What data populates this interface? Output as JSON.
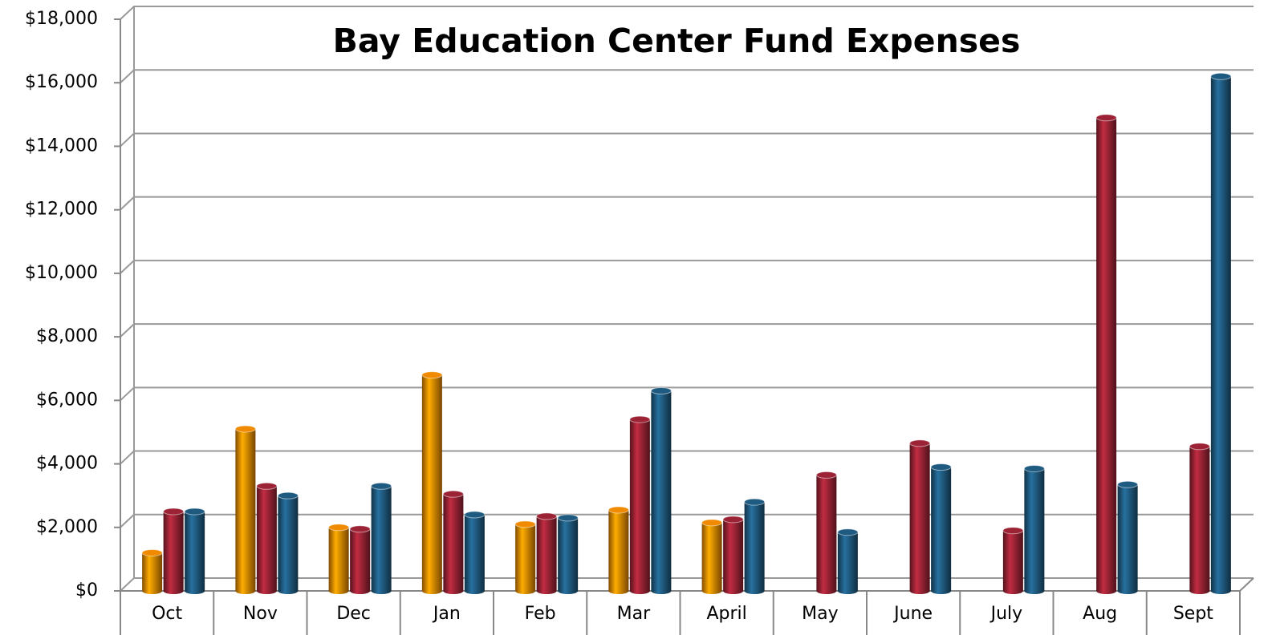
{
  "chart_data": {
    "type": "bar",
    "title": "Bay Education Center Fund Expenses",
    "categories": [
      "Oct",
      "Nov",
      "Dec",
      "Jan",
      "Feb",
      "Mar",
      "April",
      "May",
      "June",
      "July",
      "Aug",
      "Sept"
    ],
    "series": [
      {
        "color": "#f08a00",
        "values": [
          1200,
          5100,
          2000,
          6800,
          2100,
          2550,
          2150,
          null,
          null,
          null,
          null,
          null
        ]
      },
      {
        "color": "#9b2335",
        "values": [
          2500,
          3300,
          1950,
          3050,
          2350,
          5400,
          2250,
          3650,
          4650,
          1900,
          14900,
          4550
        ]
      },
      {
        "color": "#1f5a80",
        "values": [
          2500,
          3000,
          3300,
          2400,
          2300,
          6300,
          2800,
          1850,
          3900,
          3850,
          3350,
          16200
        ]
      }
    ],
    "ylim": [
      0,
      18000
    ],
    "yticks": [
      {
        "value": 0,
        "label": "$0"
      },
      {
        "value": 2000,
        "label": "$2,000"
      },
      {
        "value": 4000,
        "label": "$4,000"
      },
      {
        "value": 6000,
        "label": "$6,000"
      },
      {
        "value": 8000,
        "label": "$8,000"
      },
      {
        "value": 10000,
        "label": "$10,000"
      },
      {
        "value": 12000,
        "label": "$12,000"
      },
      {
        "value": 14000,
        "label": "$14,000"
      },
      {
        "value": 16000,
        "label": "$16,000"
      },
      {
        "value": 18000,
        "label": "$18,000"
      }
    ],
    "grid": true
  }
}
